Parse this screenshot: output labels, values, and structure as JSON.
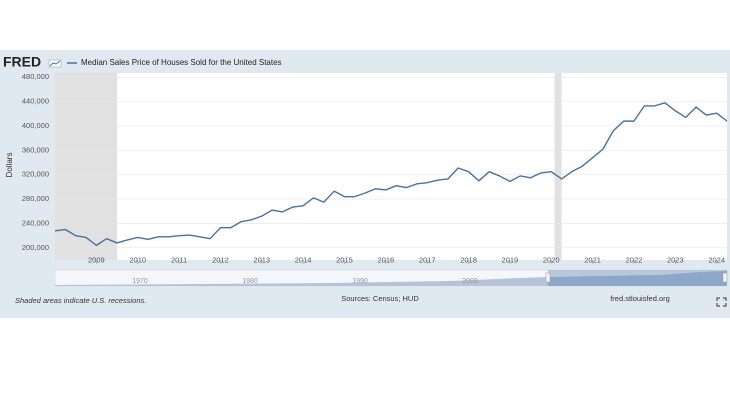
{
  "chart_data": {
    "type": "line",
    "logo": "FRED",
    "title": "Median Sales Price of Houses Sold for the United States",
    "ylabel": "Dollars",
    "note": "Shaded areas indicate U.S. recessions.",
    "source": "Sources: Census; HUD",
    "url": "fred.stlouisfed.org",
    "navigator_labels": [
      "1970",
      "1980",
      "1990",
      "2000"
    ],
    "x": [
      2008,
      2008.25,
      2008.5,
      2008.75,
      2009,
      2009.25,
      2009.5,
      2009.75,
      2010,
      2010.25,
      2010.5,
      2010.75,
      2011,
      2011.25,
      2011.5,
      2011.75,
      2012,
      2012.25,
      2012.5,
      2012.75,
      2013,
      2013.25,
      2013.5,
      2013.75,
      2014,
      2014.25,
      2014.5,
      2014.75,
      2015,
      2015.25,
      2015.5,
      2015.75,
      2016,
      2016.25,
      2016.5,
      2016.75,
      2017,
      2017.25,
      2017.5,
      2017.75,
      2018,
      2018.25,
      2018.5,
      2018.75,
      2019,
      2019.25,
      2019.5,
      2019.75,
      2020,
      2020.25,
      2020.5,
      2020.75,
      2021,
      2021.25,
      2021.5,
      2021.75,
      2022,
      2022.25,
      2022.5,
      2022.75,
      2023,
      2023.25,
      2023.5,
      2023.75,
      2024,
      2024.25
    ],
    "series": [
      {
        "name": "Median Sales Price of Houses Sold for the United States",
        "color": "#4572a7",
        "values": [
          228000,
          230000,
          220000,
          217000,
          204000,
          215000,
          208000,
          213000,
          217000,
          214000,
          218000,
          218000,
          220000,
          221000,
          218000,
          215000,
          233000,
          233000,
          243000,
          246000,
          252000,
          262000,
          259000,
          267000,
          269000,
          282000,
          275000,
          293000,
          284000,
          284000,
          290000,
          297000,
          295000,
          302000,
          299000,
          305000,
          307000,
          311000,
          313000,
          331000,
          325000,
          310000,
          325000,
          318000,
          309000,
          318000,
          315000,
          323000,
          325000,
          313000,
          325000,
          334000,
          348000,
          362000,
          392000,
          408000,
          408000,
          433000,
          433000,
          438000,
          425000,
          414000,
          431000,
          418000,
          421000,
          408000
        ]
      }
    ],
    "recessions": [
      [
        2008,
        2009.5
      ],
      [
        2020.08,
        2020.25
      ]
    ],
    "xlim": [
      2008,
      2024.25
    ],
    "xticks": [
      2009,
      2010,
      2011,
      2012,
      2013,
      2014,
      2015,
      2016,
      2017,
      2018,
      2019,
      2020,
      2021,
      2022,
      2023,
      2024
    ],
    "ylim": [
      180000,
      487000
    ],
    "yticks": [
      {
        "value": 200000,
        "label": "200,000"
      },
      {
        "value": 240000,
        "label": "240,000"
      },
      {
        "value": 280000,
        "label": "280,000"
      },
      {
        "value": 320000,
        "label": "320,000"
      },
      {
        "value": 360000,
        "label": "360,000"
      },
      {
        "value": 400000,
        "label": "400,000"
      },
      {
        "value": 440000,
        "label": "440,000"
      },
      {
        "value": 480000,
        "label": "480,000"
      }
    ],
    "grid": true
  }
}
